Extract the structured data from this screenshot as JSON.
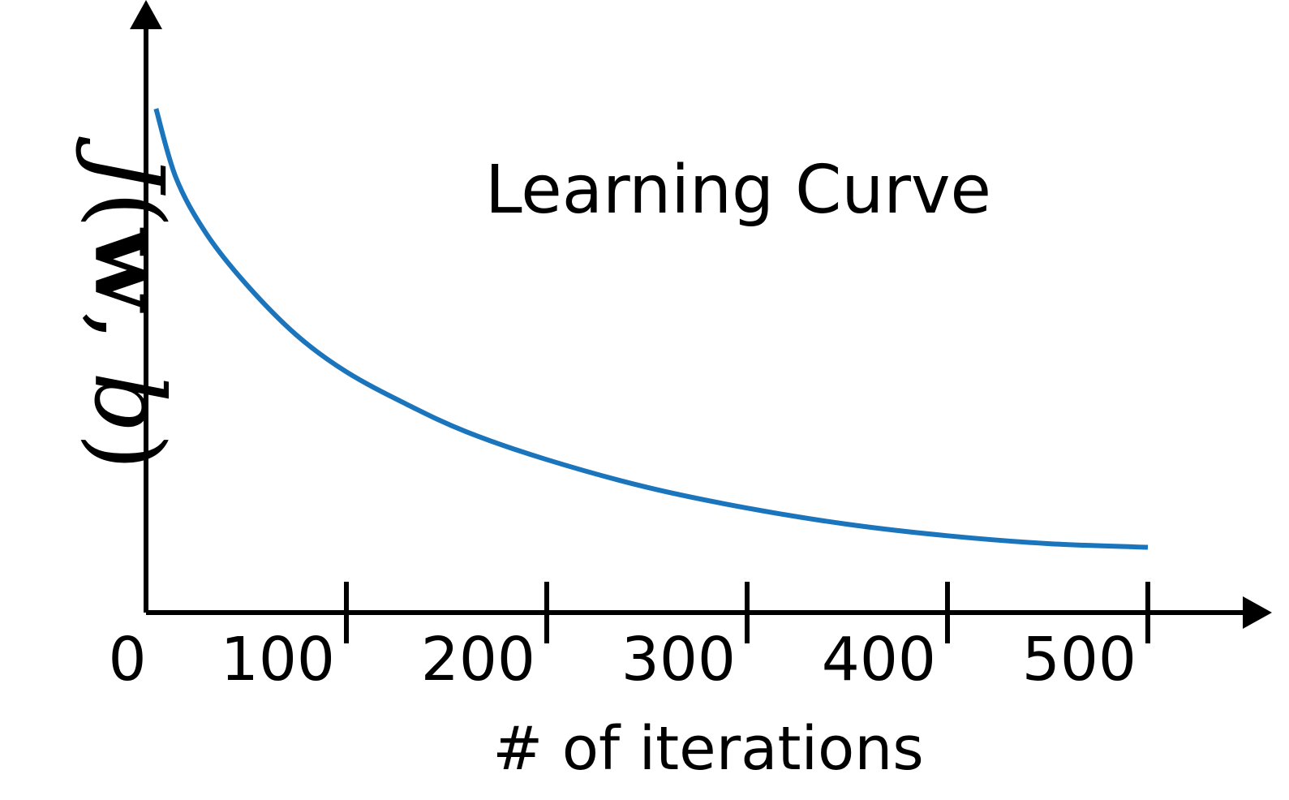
{
  "chart_data": {
    "type": "line",
    "title": "Learning Curve",
    "xlabel": "# of iterations",
    "ylabel": {
      "parts": [
        {
          "text": "J",
          "style": "italic"
        },
        {
          "text": "(",
          "style": "normal"
        },
        {
          "text": "w",
          "style": "bold"
        },
        {
          "text": ", ",
          "style": "normal"
        },
        {
          "text": "b",
          "style": "italic"
        },
        {
          "text": ")",
          "style": "normal"
        }
      ]
    },
    "origin_label": "0",
    "xticks": [
      100,
      200,
      300,
      400,
      500
    ],
    "xtick_labels": [
      "100",
      "200",
      "300",
      "400",
      "500"
    ],
    "xlim": [
      0,
      550
    ],
    "ylim": [
      0,
      1
    ],
    "grid": false,
    "y_tick_labels_shown": false,
    "series": [
      {
        "color": "#1b75bc",
        "x": [
          5,
          15,
          30,
          50,
          75,
          100,
          130,
          160,
          200,
          250,
          300,
          350,
          400,
          450,
          500
        ],
        "y": [
          1.0,
          0.85,
          0.73,
          0.62,
          0.51,
          0.43,
          0.36,
          0.3,
          0.24,
          0.18,
          0.135,
          0.1,
          0.075,
          0.058,
          0.05
        ]
      }
    ]
  }
}
